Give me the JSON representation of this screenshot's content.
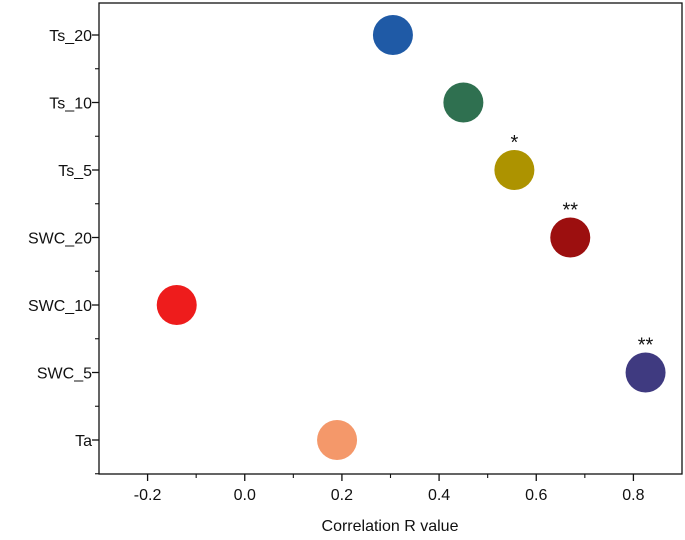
{
  "chart_data": {
    "type": "scatter",
    "xlabel": "Correlation R value",
    "ylabel": "",
    "title": "",
    "xlim": [
      -0.3,
      0.9
    ],
    "x_ticks": [
      -0.2,
      0.0,
      0.2,
      0.4,
      0.6,
      0.8
    ],
    "x_tick_labels": [
      "-0.2",
      "0.0",
      "0.2",
      "0.4",
      "0.6",
      "0.8"
    ],
    "grid": false,
    "categories": [
      "Ts_20",
      "Ts_10",
      "Ts_5",
      "SWC_20",
      "SWC_10",
      "SWC_5",
      "Ta"
    ],
    "points": [
      {
        "category": "Ts_20",
        "x": 0.305,
        "color": "#1f5aa6",
        "significance": ""
      },
      {
        "category": "Ts_10",
        "x": 0.45,
        "color": "#2f7050",
        "significance": ""
      },
      {
        "category": "Ts_5",
        "x": 0.555,
        "color": "#ad9300",
        "significance": "*"
      },
      {
        "category": "SWC_20",
        "x": 0.67,
        "color": "#9c0f0f",
        "significance": "**"
      },
      {
        "category": "SWC_10",
        "x": -0.14,
        "color": "#ee1c1c",
        "significance": ""
      },
      {
        "category": "SWC_5",
        "x": 0.825,
        "color": "#3f3a80",
        "significance": "**"
      },
      {
        "category": "Ta",
        "x": 0.19,
        "color": "#f4986a",
        "significance": ""
      }
    ]
  }
}
